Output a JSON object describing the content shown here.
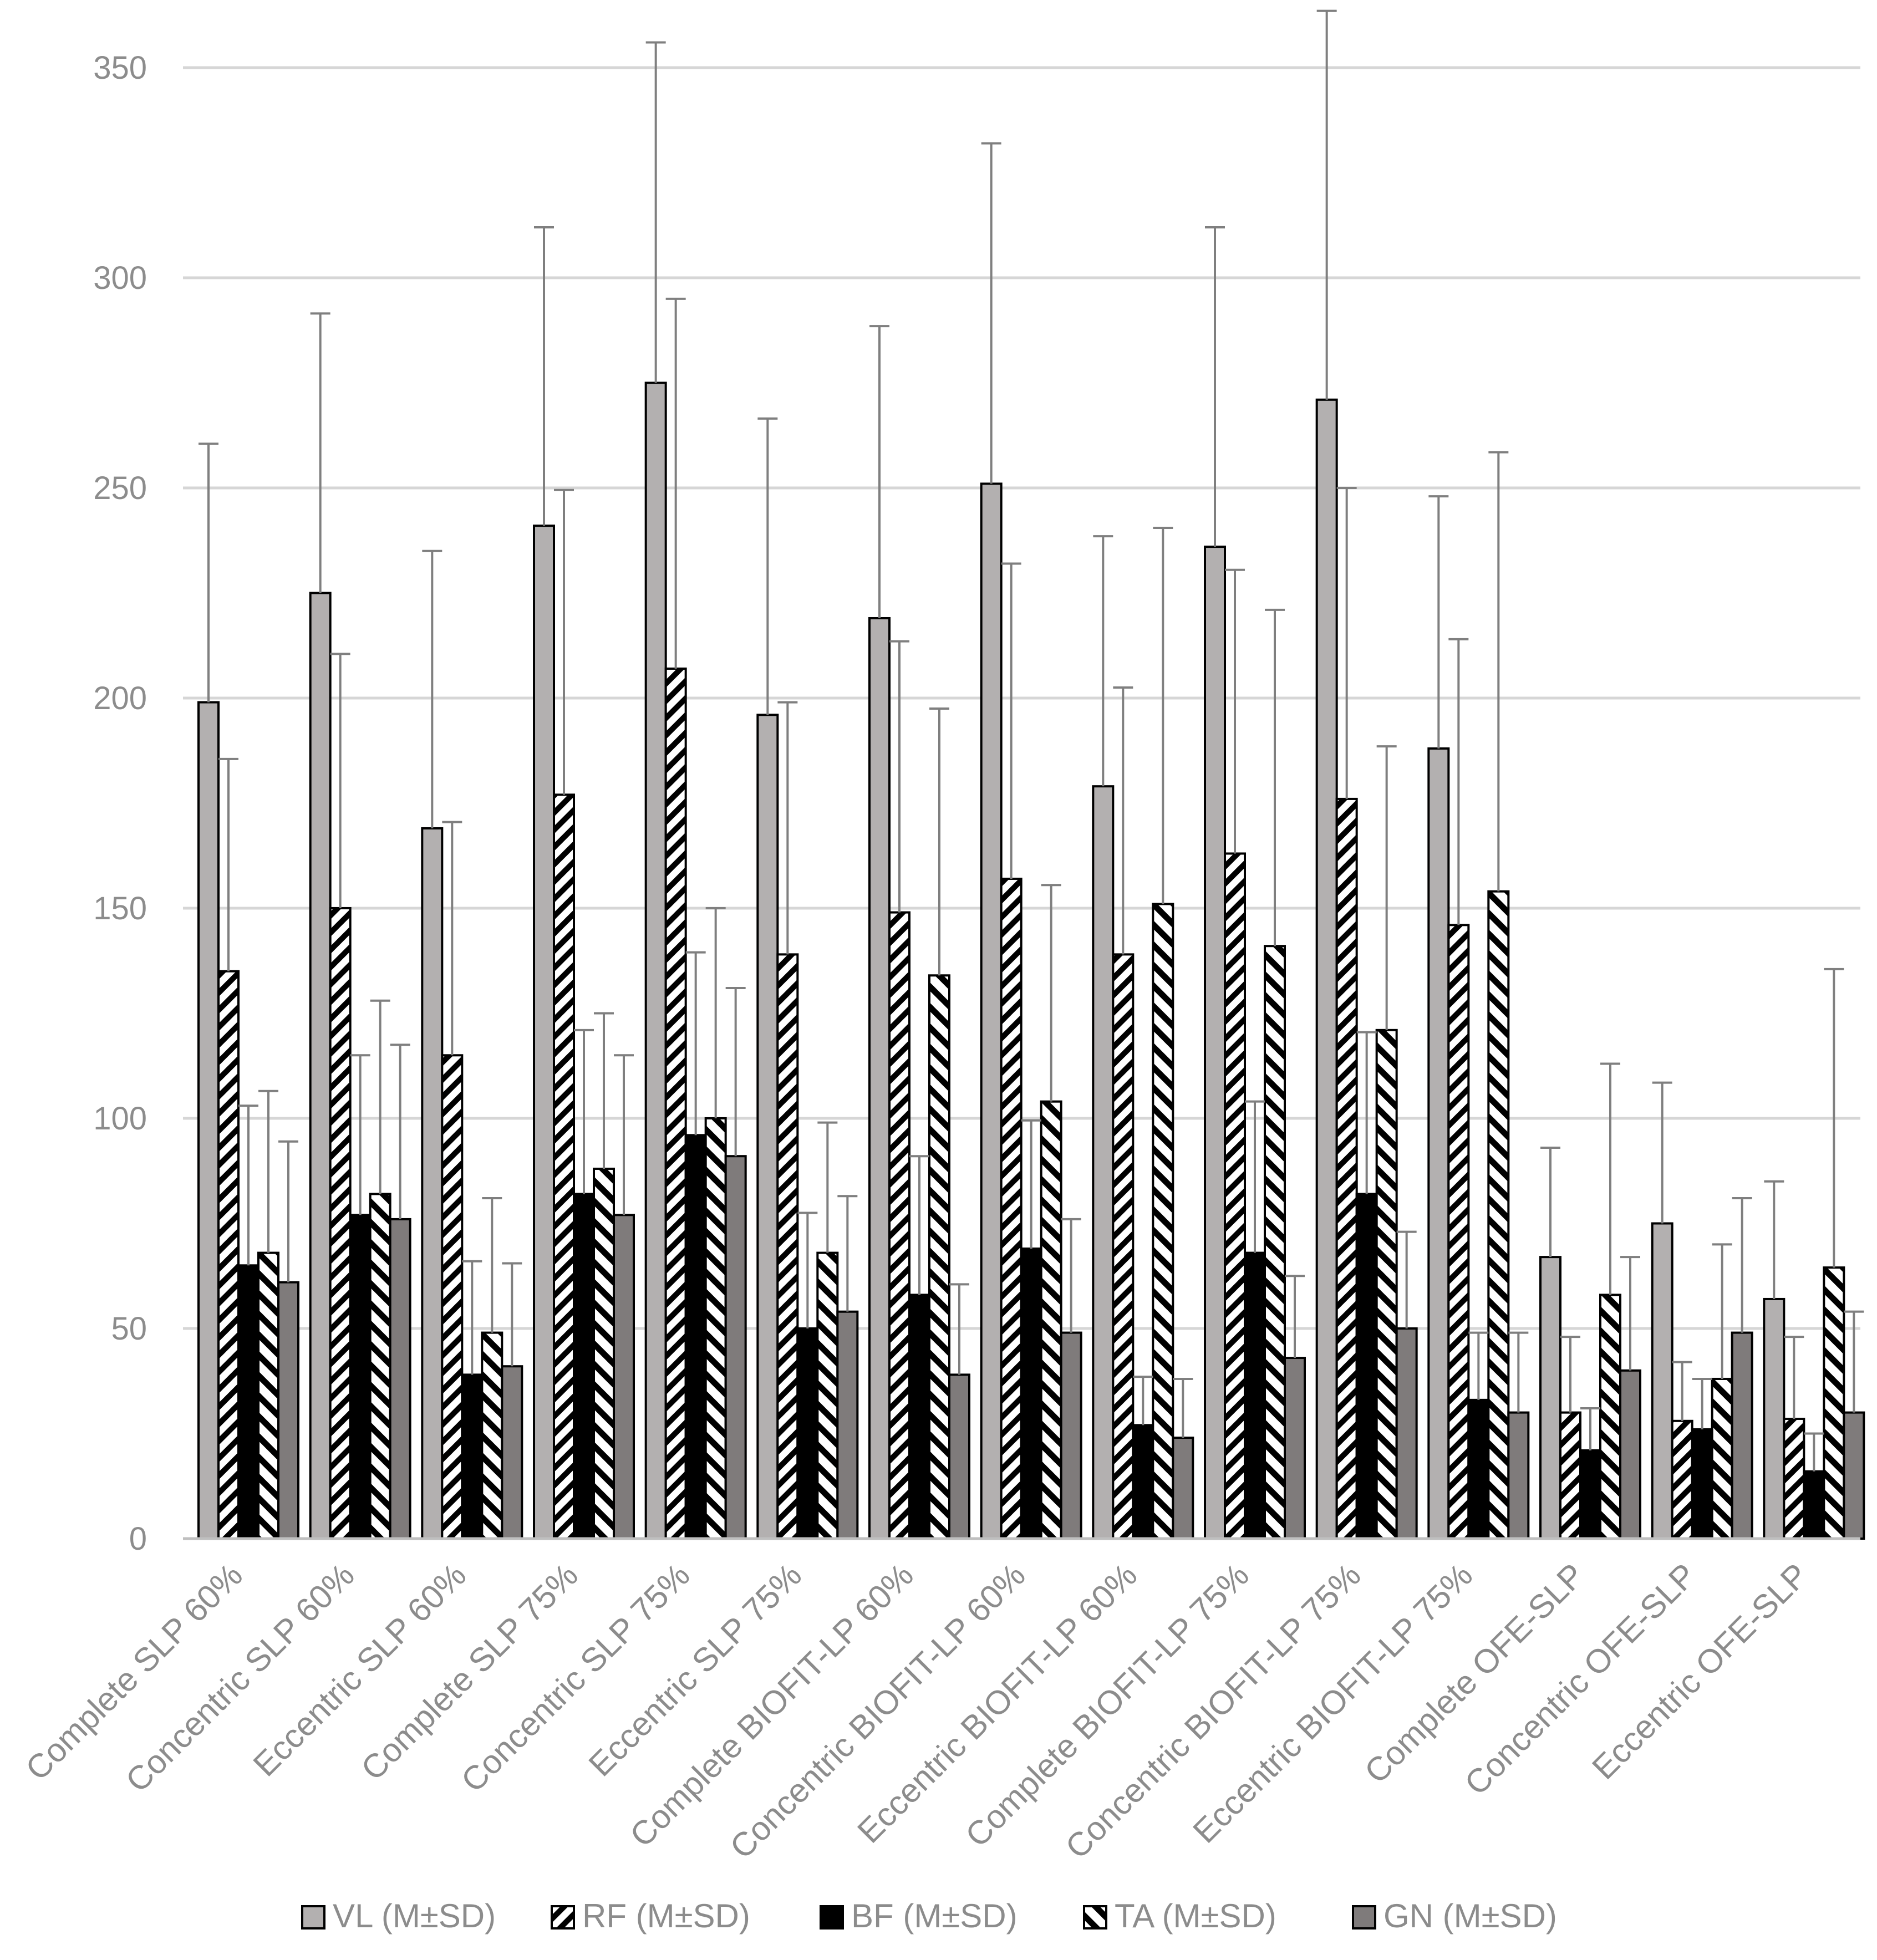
{
  "chart_data": {
    "type": "bar",
    "title": "",
    "xlabel": "",
    "ylabel": "",
    "ylim": [
      0,
      350
    ],
    "yticks": [
      0,
      50,
      100,
      150,
      200,
      250,
      300,
      350
    ],
    "grid": true,
    "legend_position": "bottom",
    "categories": [
      "Complete SLP 60%",
      "Concentric SLP 60%",
      "Eccentric SLP 60%",
      "Complete SLP 75%",
      "Concentric SLP 75%",
      "Eccentric SLP 75%",
      "Complete BIOFIT-LP 60%",
      "Concentric BIOFIT-LP 60%",
      "Eccentric BIOFIT-LP 60%",
      "Complete BIOFIT-LP 75%",
      "Concentric BIOFIT-LP 75%",
      "Eccentric BIOFIT-LP 75%",
      "Complete OFE-SLP",
      "Concentric OFE-SLP",
      "Eccentric OFE-SLP"
    ],
    "series": [
      {
        "name": "VL (M±SD)",
        "color": "#b3b0b0",
        "pattern": "solid-light",
        "values": [
          199,
          225,
          169,
          241,
          275,
          196,
          219,
          251,
          179,
          236,
          271,
          188,
          67,
          75,
          57
        ],
        "error_upper": [
          260.5,
          291.5,
          235,
          312,
          356,
          266.5,
          288.5,
          332,
          238.5,
          312,
          363.5,
          248,
          93,
          108.5,
          85
        ]
      },
      {
        "name": "RF (M±SD)",
        "color": "#000000",
        "pattern": "hatch-backslash",
        "values": [
          135,
          150,
          115,
          177,
          207,
          139,
          149,
          157,
          139,
          163,
          176,
          146,
          30,
          28,
          28.5
        ],
        "error_upper": [
          185.5,
          210.5,
          170.5,
          249.5,
          295,
          199,
          213.5,
          232,
          202.5,
          230.5,
          250,
          214,
          48,
          42,
          48
        ]
      },
      {
        "name": "BF (M±SD)",
        "color": "#000000",
        "pattern": "solid-black",
        "values": [
          65,
          77,
          39,
          82,
          96,
          50,
          58,
          69,
          27,
          68,
          82,
          33,
          21,
          26,
          16
        ],
        "error_upper": [
          103,
          115,
          66,
          121,
          139.5,
          77.5,
          91,
          99.5,
          38.5,
          104,
          120.5,
          49,
          31,
          38,
          25
        ]
      },
      {
        "name": "TA (M±SD)",
        "color": "#000000",
        "pattern": "hatch-slash",
        "values": [
          68,
          82,
          49,
          88,
          100,
          68,
          134,
          104,
          151,
          141,
          121,
          154,
          58,
          38,
          64.5
        ],
        "error_upper": [
          106.5,
          128,
          81,
          125,
          150,
          99,
          197.5,
          155.5,
          240.5,
          221,
          188.5,
          258.5,
          113,
          70,
          135.5
        ]
      },
      {
        "name": "GN (M±SD)",
        "color": "#7f7b7b",
        "pattern": "solid-dark",
        "values": [
          61,
          76,
          41,
          77,
          91,
          54,
          39,
          49,
          24,
          43,
          50,
          30,
          40,
          49,
          30
        ],
        "error_upper": [
          94.5,
          117.5,
          65.5,
          115,
          131,
          81.5,
          60.5,
          76,
          38,
          62.5,
          73,
          49,
          67,
          81,
          54
        ]
      }
    ]
  }
}
